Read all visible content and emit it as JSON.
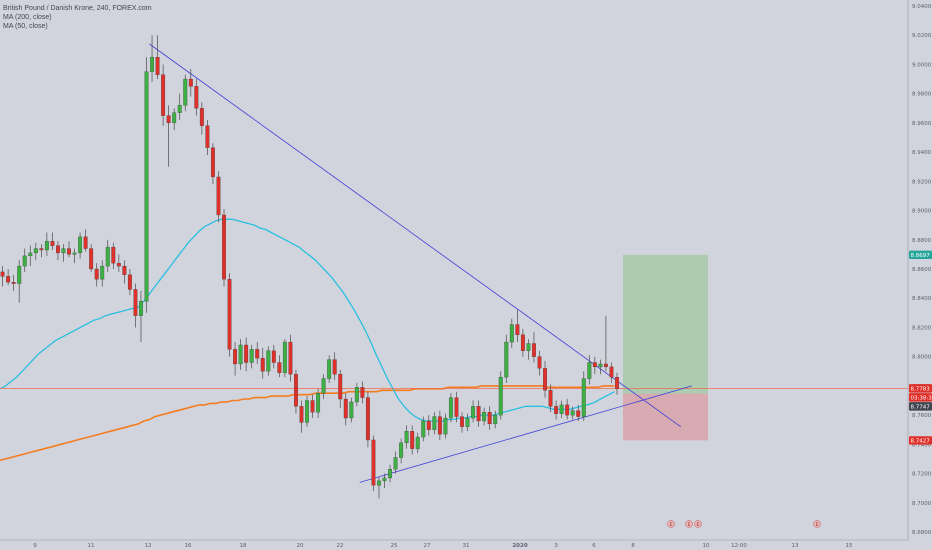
{
  "legend": {
    "symbol_line": "British Pound / Danish Krone, 240, FOREX.com",
    "ma200": "MA (200, close)",
    "ma50": "MA (50, close)"
  },
  "colors": {
    "background": "#d1d4dc",
    "up_candle": "#26a69a",
    "up_candle_body": "#3cb043",
    "down_candle": "#e0302a",
    "ma200": "#f57c1f",
    "ma50": "#29c0e0",
    "trendline": "#3f3fd6",
    "horizontal_level": "#ef6c4c",
    "target_zone": "#a6c9a8",
    "stop_zone": "#d9a3ab"
  },
  "chart_data": {
    "type": "candlestick",
    "ylim": [
      8.68,
      9.04
    ],
    "price_ticks": [
      "9.0400",
      "9.0200",
      "9.0000",
      "8.9800",
      "8.9600",
      "8.9400",
      "8.9200",
      "8.9000",
      "8.8800",
      "8.8600",
      "8.8400",
      "8.8200",
      "8.8000",
      "8.7800",
      "8.7600",
      "8.7400",
      "8.7200",
      "8.7000",
      "8.6800"
    ],
    "date_ticks": [
      "9",
      "11",
      "12",
      "16",
      "18",
      "20",
      "22",
      "25",
      "27",
      "31",
      "2020",
      "3",
      "6",
      "8",
      "10",
      "12:00",
      "13",
      "15"
    ],
    "price_tags": [
      {
        "label": "8.8697",
        "value": 8.8697,
        "color": "#26a69a"
      },
      {
        "label": "8.7783",
        "value": 8.7783,
        "color": "#e0302a"
      },
      {
        "label": "03:38:38",
        "value": 8.7765,
        "color": "#e0302a"
      },
      {
        "label": "8.7747",
        "value": 8.7747,
        "color": "#434651"
      },
      {
        "label": "8.7427",
        "value": 8.7427,
        "color": "#e0302a"
      }
    ],
    "horizontal_level": 8.7783,
    "position": {
      "target": 8.8697,
      "entry": 8.7747,
      "stop": 8.7427
    },
    "events": [
      {
        "label": "E"
      },
      {
        "label": "E"
      },
      {
        "label": "E"
      },
      {
        "label": "E"
      }
    ],
    "candles_ohlc": [
      [
        8.858,
        8.862,
        8.848,
        8.855
      ],
      [
        8.855,
        8.86,
        8.849,
        8.851
      ],
      [
        8.851,
        8.856,
        8.845,
        8.85
      ],
      [
        8.85,
        8.866,
        8.837,
        8.862
      ],
      [
        8.862,
        8.874,
        8.858,
        8.869
      ],
      [
        8.869,
        8.876,
        8.862,
        8.871
      ],
      [
        8.871,
        8.878,
        8.866,
        8.874
      ],
      [
        8.874,
        8.877,
        8.868,
        8.873
      ],
      [
        8.873,
        8.885,
        8.869,
        8.879
      ],
      [
        8.879,
        8.885,
        8.873,
        8.876
      ],
      [
        8.876,
        8.879,
        8.866,
        8.871
      ],
      [
        8.871,
        8.877,
        8.865,
        8.874
      ],
      [
        8.874,
        8.879,
        8.868,
        8.87
      ],
      [
        8.87,
        8.874,
        8.864,
        8.871
      ],
      [
        8.871,
        8.885,
        8.867,
        8.882
      ],
      [
        8.882,
        8.887,
        8.872,
        8.874
      ],
      [
        8.874,
        8.877,
        8.858,
        8.86
      ],
      [
        8.86,
        8.864,
        8.848,
        8.853
      ],
      [
        8.853,
        8.866,
        8.848,
        8.862
      ],
      [
        8.862,
        8.88,
        8.858,
        8.875
      ],
      [
        8.875,
        8.878,
        8.86,
        8.864
      ],
      [
        8.864,
        8.87,
        8.858,
        8.862
      ],
      [
        8.862,
        8.866,
        8.85,
        8.856
      ],
      [
        8.856,
        8.86,
        8.842,
        8.846
      ],
      [
        8.846,
        8.85,
        8.82,
        8.828
      ],
      [
        8.828,
        8.845,
        8.81,
        8.838
      ],
      [
        8.838,
        9.005,
        8.83,
        8.995
      ],
      [
        8.995,
        9.02,
        8.988,
        9.005
      ],
      [
        9.005,
        9.02,
        8.99,
        8.993
      ],
      [
        8.993,
        9.0,
        8.958,
        8.965
      ],
      [
        8.965,
        8.972,
        8.93,
        8.96
      ],
      [
        8.96,
        8.97,
        8.955,
        8.967
      ],
      [
        8.967,
        8.98,
        8.962,
        8.972
      ],
      [
        8.972,
        8.993,
        8.968,
        8.99
      ],
      [
        8.99,
        8.997,
        8.978,
        8.985
      ],
      [
        8.985,
        8.99,
        8.965,
        8.97
      ],
      [
        8.97,
        8.974,
        8.952,
        8.958
      ],
      [
        8.958,
        8.962,
        8.938,
        8.943
      ],
      [
        8.943,
        8.946,
        8.918,
        8.923
      ],
      [
        8.923,
        8.927,
        8.892,
        8.897
      ],
      [
        8.897,
        8.901,
        8.848,
        8.853
      ],
      [
        8.853,
        8.857,
        8.8,
        8.805
      ],
      [
        8.805,
        8.81,
        8.787,
        8.795
      ],
      [
        8.795,
        8.812,
        8.791,
        8.808
      ],
      [
        8.808,
        8.813,
        8.79,
        8.796
      ],
      [
        8.796,
        8.808,
        8.792,
        8.805
      ],
      [
        8.805,
        8.81,
        8.795,
        8.799
      ],
      [
        8.799,
        8.806,
        8.785,
        8.79
      ],
      [
        8.79,
        8.807,
        8.787,
        8.804
      ],
      [
        8.804,
        8.808,
        8.792,
        8.796
      ],
      [
        8.796,
        8.801,
        8.786,
        8.789
      ],
      [
        8.789,
        8.812,
        8.786,
        8.81
      ],
      [
        8.81,
        8.815,
        8.783,
        8.788
      ],
      [
        8.788,
        8.791,
        8.761,
        8.766
      ],
      [
        8.766,
        8.77,
        8.748,
        8.755
      ],
      [
        8.755,
        8.773,
        8.752,
        8.77
      ],
      [
        8.77,
        8.774,
        8.758,
        8.762
      ],
      [
        8.762,
        8.778,
        8.758,
        8.775
      ],
      [
        8.775,
        8.788,
        8.771,
        8.785
      ],
      [
        8.785,
        8.801,
        8.782,
        8.798
      ],
      [
        8.798,
        8.803,
        8.784,
        8.788
      ],
      [
        8.788,
        8.791,
        8.765,
        8.771
      ],
      [
        8.771,
        8.775,
        8.753,
        8.758
      ],
      [
        8.758,
        8.772,
        8.755,
        8.769
      ],
      [
        8.769,
        8.782,
        8.766,
        8.779
      ],
      [
        8.779,
        8.783,
        8.768,
        8.772
      ],
      [
        8.772,
        8.776,
        8.738,
        8.743
      ],
      [
        8.743,
        8.746,
        8.708,
        8.712
      ],
      [
        8.712,
        8.718,
        8.703,
        8.715
      ],
      [
        8.715,
        8.72,
        8.71,
        8.717
      ],
      [
        8.717,
        8.726,
        8.714,
        8.723
      ],
      [
        8.723,
        8.735,
        8.72,
        8.731
      ],
      [
        8.731,
        8.744,
        8.727,
        8.741
      ],
      [
        8.741,
        8.753,
        8.737,
        8.749
      ],
      [
        8.749,
        8.753,
        8.733,
        8.737
      ],
      [
        8.737,
        8.748,
        8.734,
        8.745
      ],
      [
        8.745,
        8.759,
        8.742,
        8.756
      ],
      [
        8.756,
        8.76,
        8.746,
        8.75
      ],
      [
        8.75,
        8.762,
        8.747,
        8.759
      ],
      [
        8.759,
        8.763,
        8.743,
        8.747
      ],
      [
        8.747,
        8.761,
        8.744,
        8.758
      ],
      [
        8.758,
        8.775,
        8.755,
        8.772
      ],
      [
        8.772,
        8.776,
        8.755,
        8.759
      ],
      [
        8.759,
        8.762,
        8.748,
        8.752
      ],
      [
        8.752,
        8.761,
        8.749,
        8.758
      ],
      [
        8.758,
        8.77,
        8.755,
        8.766
      ],
      [
        8.766,
        8.77,
        8.752,
        8.756
      ],
      [
        8.756,
        8.765,
        8.753,
        8.762
      ],
      [
        8.762,
        8.766,
        8.75,
        8.754
      ],
      [
        8.754,
        8.763,
        8.751,
        8.76
      ],
      [
        8.76,
        8.79,
        8.757,
        8.786
      ],
      [
        8.786,
        8.815,
        8.782,
        8.81
      ],
      [
        8.81,
        8.826,
        8.806,
        8.822
      ],
      [
        8.822,
        8.832,
        8.81,
        8.815
      ],
      [
        8.815,
        8.819,
        8.8,
        8.804
      ],
      [
        8.804,
        8.812,
        8.798,
        8.809
      ],
      [
        8.809,
        8.817,
        8.796,
        8.8
      ],
      [
        8.8,
        8.804,
        8.787,
        8.792
      ],
      [
        8.792,
        8.797,
        8.772,
        8.777
      ],
      [
        8.777,
        8.781,
        8.762,
        8.766
      ],
      [
        8.766,
        8.77,
        8.757,
        8.761
      ],
      [
        8.761,
        8.77,
        8.758,
        8.767
      ],
      [
        8.767,
        8.771,
        8.757,
        8.76
      ],
      [
        8.76,
        8.766,
        8.757,
        8.763
      ],
      [
        8.763,
        8.767,
        8.756,
        8.759
      ],
      [
        8.759,
        8.79,
        8.756,
        8.785
      ],
      [
        8.785,
        8.801,
        8.781,
        8.796
      ],
      [
        8.796,
        8.8,
        8.788,
        8.793
      ],
      [
        8.793,
        8.798,
        8.788,
        8.795
      ],
      [
        8.795,
        8.828,
        8.79,
        8.793
      ],
      [
        8.793,
        8.796,
        8.782,
        8.786
      ],
      [
        8.786,
        8.789,
        8.774,
        8.778
      ]
    ],
    "ma200_values": [
      8.729,
      8.73,
      8.731,
      8.732,
      8.733,
      8.734,
      8.735,
      8.736,
      8.737,
      8.738,
      8.739,
      8.74,
      8.741,
      8.742,
      8.743,
      8.744,
      8.745,
      8.746,
      8.747,
      8.748,
      8.749,
      8.75,
      8.751,
      8.752,
      8.753,
      8.754,
      8.756,
      8.757,
      8.759,
      8.76,
      8.761,
      8.762,
      8.763,
      8.764,
      8.765,
      8.766,
      8.767,
      8.767,
      8.768,
      8.768,
      8.769,
      8.769,
      8.77,
      8.77,
      8.771,
      8.771,
      8.772,
      8.772,
      8.772,
      8.773,
      8.773,
      8.773,
      8.773,
      8.774,
      8.774,
      8.774,
      8.774,
      8.775,
      8.775,
      8.775,
      8.775,
      8.775,
      8.775,
      8.776,
      8.776,
      8.776,
      8.776,
      8.776,
      8.776,
      8.777,
      8.777,
      8.777,
      8.777,
      8.777,
      8.777,
      8.778,
      8.778,
      8.778,
      8.778,
      8.778,
      8.778,
      8.779,
      8.779,
      8.779,
      8.779,
      8.779,
      8.779,
      8.78,
      8.78,
      8.78,
      8.78,
      8.78,
      8.78,
      8.78,
      8.78,
      8.78,
      8.78,
      8.78,
      8.78,
      8.779,
      8.779,
      8.779,
      8.779,
      8.779,
      8.779,
      8.779,
      8.779,
      8.779,
      8.779,
      8.78,
      8.78,
      8.78
    ],
    "ma50_values": [
      8.778,
      8.78,
      8.783,
      8.786,
      8.79,
      8.794,
      8.798,
      8.802,
      8.805,
      8.808,
      8.811,
      8.813,
      8.815,
      8.817,
      8.819,
      8.821,
      8.823,
      8.825,
      8.826,
      8.828,
      8.829,
      8.83,
      8.831,
      8.832,
      8.833,
      8.834,
      8.838,
      8.843,
      8.848,
      8.853,
      8.858,
      8.863,
      8.868,
      8.873,
      8.878,
      8.882,
      8.886,
      8.889,
      8.891,
      8.893,
      8.894,
      8.894,
      8.894,
      8.893,
      8.892,
      8.891,
      8.89,
      8.888,
      8.887,
      8.885,
      8.883,
      8.881,
      8.879,
      8.877,
      8.875,
      8.872,
      8.869,
      8.866,
      8.862,
      8.858,
      8.854,
      8.849,
      8.844,
      8.838,
      8.832,
      8.825,
      8.818,
      8.81,
      8.801,
      8.793,
      8.785,
      8.778,
      8.771,
      8.766,
      8.762,
      8.759,
      8.757,
      8.756,
      8.756,
      8.756,
      8.756,
      8.757,
      8.757,
      8.758,
      8.758,
      8.759,
      8.759,
      8.76,
      8.76,
      8.76,
      8.761,
      8.762,
      8.763,
      8.764,
      8.765,
      8.766,
      8.766,
      8.766,
      8.766,
      8.765,
      8.764,
      8.764,
      8.764,
      8.764,
      8.765,
      8.766,
      8.767,
      8.768,
      8.77,
      8.772,
      8.774,
      8.776
    ],
    "trendlines": [
      {
        "name": "descending",
        "from": [
          27,
          9.014
        ],
        "to": [
          123,
          8.752
        ]
      },
      {
        "name": "ascending",
        "from": [
          65,
          8.714
        ],
        "to": [
          125,
          8.78
        ]
      }
    ]
  }
}
